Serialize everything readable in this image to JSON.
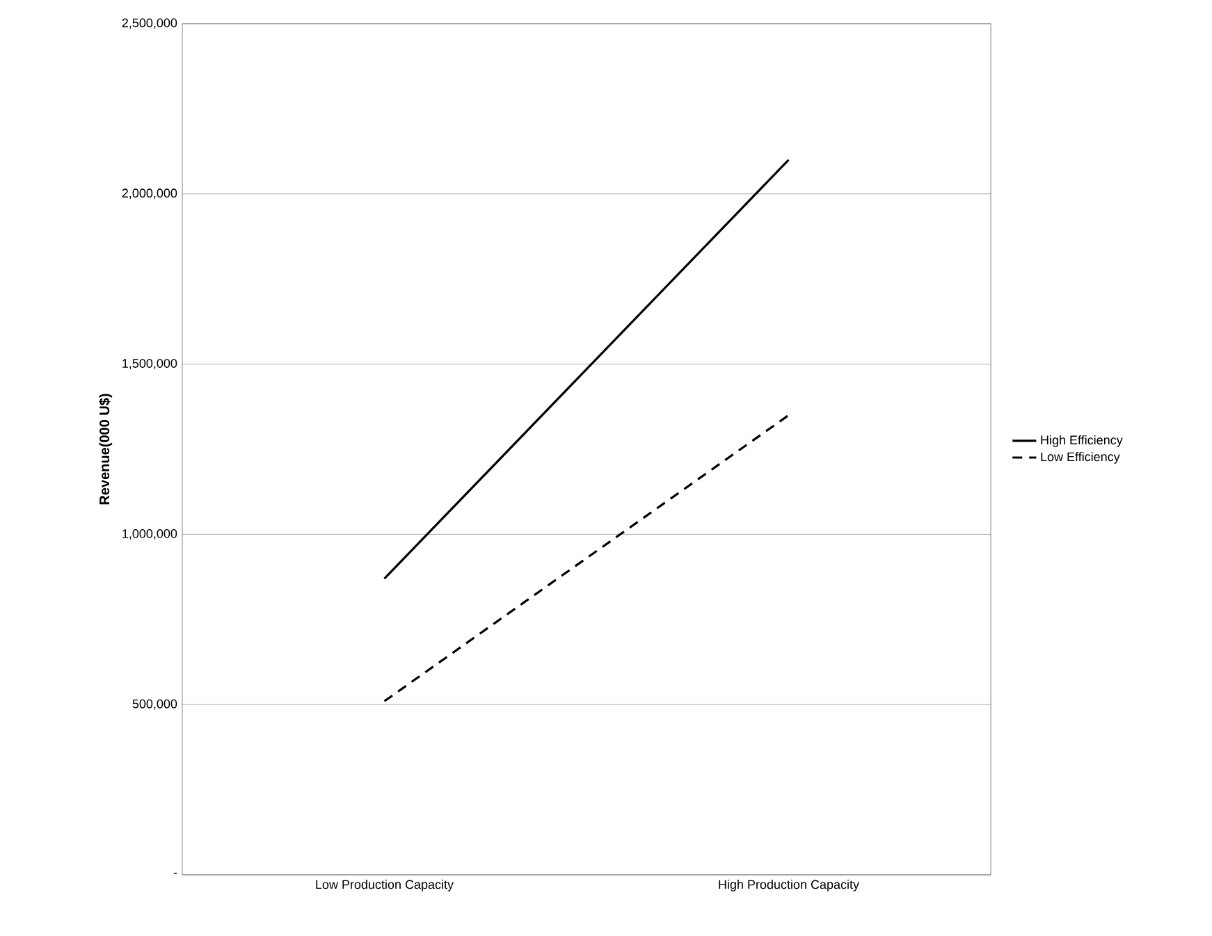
{
  "chart_data": {
    "type": "line",
    "ylabel": "Revenue(000 U$)",
    "categories": [
      "Low Production Capacity",
      "High Production Capacity"
    ],
    "series": [
      {
        "name": "High Efficiency",
        "color": "#000000",
        "line_style": "solid",
        "values": [
          870000,
          2100000
        ]
      },
      {
        "name": "Low Efficiency",
        "color": "#000000",
        "line_style": "dashed",
        "values": [
          510000,
          1350000
        ]
      }
    ],
    "ylim": [
      0,
      2500000
    ],
    "yticks": [
      {
        "value": 0,
        "label": "-"
      },
      {
        "value": 500000,
        "label": "500,000"
      },
      {
        "value": 1000000,
        "label": "1,000,000"
      },
      {
        "value": 1500000,
        "label": "1,500,000"
      },
      {
        "value": 2000000,
        "label": "2,000,000"
      },
      {
        "value": 2500000,
        "label": "2,500,000"
      }
    ],
    "grid": "y",
    "legend": "right",
    "marker": "none"
  }
}
